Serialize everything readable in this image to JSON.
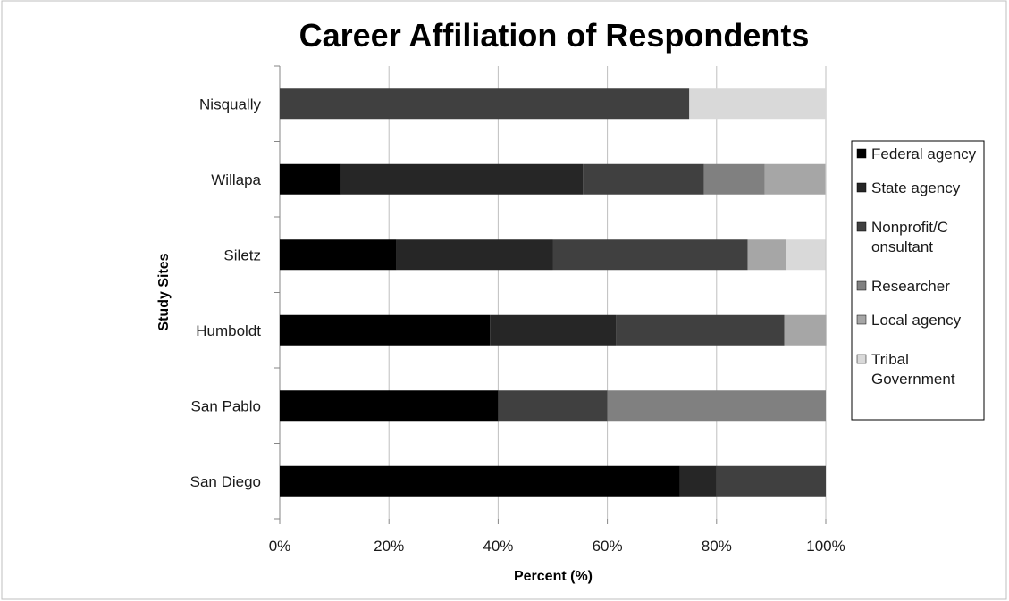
{
  "chart_data": {
    "type": "bar",
    "orientation": "horizontal",
    "stacked": true,
    "title": "Career Affiliation of Respondents",
    "xlabel": "Percent (%)",
    "ylabel": "Study Sites",
    "xlim": [
      0,
      100
    ],
    "x_ticks": [
      "0%",
      "20%",
      "40%",
      "60%",
      "80%",
      "100%"
    ],
    "grid": "vertical",
    "legend_position": "right",
    "categories": [
      "Nisqually",
      "Willapa",
      "Siletz",
      "Humboldt",
      "San Pablo",
      "San Diego"
    ],
    "series": [
      {
        "name": "Federal agency",
        "color": "#000000",
        "values": [
          0,
          11.1,
          21.4,
          38.5,
          40,
          73.3
        ]
      },
      {
        "name": "State agency",
        "color": "#262626",
        "values": [
          0,
          44.4,
          28.6,
          23.1,
          0,
          6.7
        ]
      },
      {
        "name": "Nonprofit/Consultant",
        "legend_lines": [
          "Nonprofit/C",
          "onsultant"
        ],
        "color": "#404040",
        "values": [
          75,
          22.2,
          35.7,
          30.8,
          20,
          20
        ]
      },
      {
        "name": "Researcher",
        "color": "#808080",
        "values": [
          0,
          11.1,
          0,
          0,
          40,
          0
        ]
      },
      {
        "name": "Local agency",
        "color": "#a6a6a6",
        "values": [
          0,
          11.1,
          7.1,
          7.7,
          0,
          0
        ]
      },
      {
        "name": "Tribal Government",
        "legend_lines": [
          "Tribal",
          "Government"
        ],
        "color": "#d9d9d9",
        "values": [
          25,
          0,
          7.1,
          0,
          0,
          0
        ]
      }
    ]
  }
}
